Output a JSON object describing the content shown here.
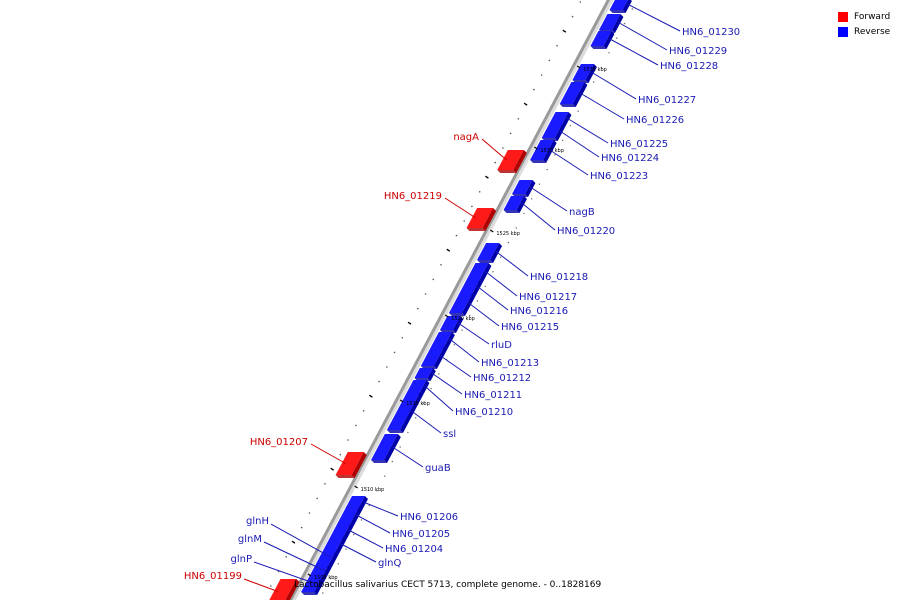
{
  "colors": {
    "forward": "#ff1a1a",
    "forward_dark": "#b00000",
    "reverse": "#1a1aff",
    "reverse_dark": "#0000a8",
    "backbone": "#9a9a9a",
    "label_forward": "#cc0000",
    "label_reverse": "#1a1ab3"
  },
  "legend": [
    {
      "label": "Forward",
      "color": "#ff0000"
    },
    {
      "label": "Reverse",
      "color": "#0000ff"
    }
  ],
  "caption": "Lactobacillus salivarius CECT 5713, complete genome. - 0..1828169",
  "position_labels": [
    "1505 kbp",
    "1510 kbp",
    "1515 kbp",
    "1520 kbp",
    "1525 kbp",
    "1530 kbp",
    "1535 kbp"
  ],
  "genes": [
    {
      "name": "HN6_01230",
      "strand": "reverse"
    },
    {
      "name": "HN6_01229",
      "strand": "reverse"
    },
    {
      "name": "HN6_01228",
      "strand": "reverse"
    },
    {
      "name": "HN6_01227",
      "strand": "reverse"
    },
    {
      "name": "HN6_01226",
      "strand": "reverse"
    },
    {
      "name": "HN6_01225",
      "strand": "reverse"
    },
    {
      "name": "HN6_01224",
      "strand": "reverse"
    },
    {
      "name": "HN6_01223",
      "strand": "reverse"
    },
    {
      "name": "nagA",
      "strand": "forward"
    },
    {
      "name": "HN6_01219",
      "strand": "forward"
    },
    {
      "name": "nagB",
      "strand": "reverse"
    },
    {
      "name": "HN6_01220",
      "strand": "reverse"
    },
    {
      "name": "HN6_01218",
      "strand": "reverse"
    },
    {
      "name": "HN6_01217",
      "strand": "reverse"
    },
    {
      "name": "HN6_01216",
      "strand": "reverse"
    },
    {
      "name": "HN6_01215",
      "strand": "reverse"
    },
    {
      "name": "rluD",
      "strand": "reverse"
    },
    {
      "name": "HN6_01213",
      "strand": "reverse"
    },
    {
      "name": "HN6_01212",
      "strand": "reverse"
    },
    {
      "name": "HN6_01211",
      "strand": "reverse"
    },
    {
      "name": "HN6_01210",
      "strand": "reverse"
    },
    {
      "name": "ssl",
      "strand": "reverse"
    },
    {
      "name": "HN6_01207",
      "strand": "forward"
    },
    {
      "name": "guaB",
      "strand": "reverse"
    },
    {
      "name": "HN6_01206",
      "strand": "reverse"
    },
    {
      "name": "HN6_01205",
      "strand": "reverse"
    },
    {
      "name": "HN6_01204",
      "strand": "reverse"
    },
    {
      "name": "glnQ",
      "strand": "reverse"
    },
    {
      "name": "glnH",
      "strand": "reverse"
    },
    {
      "name": "glnM",
      "strand": "reverse"
    },
    {
      "name": "glnP",
      "strand": "reverse"
    },
    {
      "name": "HN6_01199",
      "strand": "forward"
    }
  ]
}
